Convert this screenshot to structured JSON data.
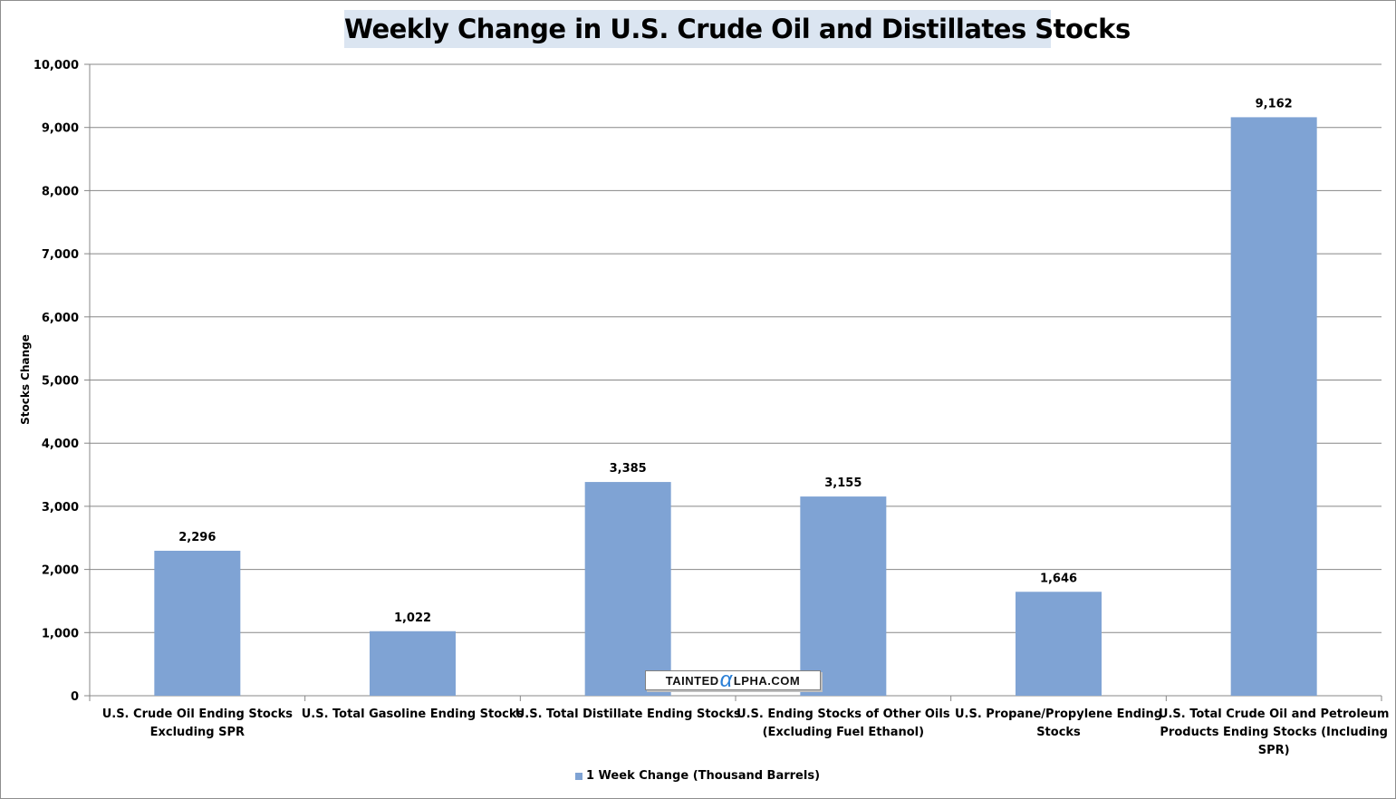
{
  "chart_data": {
    "type": "bar",
    "title": "Weekly Change in U.S. Crude Oil and Distillates Stocks",
    "xlabel": "",
    "ylabel": "Stocks Change",
    "ylim": [
      0,
      10000
    ],
    "yticks": [
      0,
      1000,
      2000,
      3000,
      4000,
      5000,
      6000,
      7000,
      8000,
      9000,
      10000
    ],
    "ytick_labels": [
      "0",
      "1,000",
      "2,000",
      "3,000",
      "4,000",
      "5,000",
      "6,000",
      "7,000",
      "8,000",
      "9,000",
      "10,000"
    ],
    "categories": [
      [
        "U.S. Crude Oil Ending Stocks",
        "Excluding SPR"
      ],
      [
        "U.S. Total Gasoline Ending Stocks"
      ],
      [
        "U.S. Total Distillate Ending Stocks"
      ],
      [
        "U.S. Ending Stocks of Other Oils",
        "(Excluding Fuel Ethanol)"
      ],
      [
        "U.S. Propane/Propylene Ending",
        "Stocks"
      ],
      [
        "U.S. Total Crude Oil and Petroleum",
        "Products Ending Stocks (Including",
        "SPR)"
      ]
    ],
    "series": [
      {
        "name": "1 Week Change (Thousand Barrels)",
        "values": [
          2296,
          1022,
          3385,
          3155,
          1646,
          9162
        ],
        "value_labels": [
          "2,296",
          "1,022",
          "3,385",
          "3,155",
          "1,646",
          "9,162"
        ],
        "color": "#7fa3d4"
      }
    ],
    "grid": true,
    "legend": "bottom-center"
  },
  "watermark": {
    "prefix": "TAINTED",
    "alpha_glyph": "α",
    "suffix": "LPHA.COM"
  }
}
